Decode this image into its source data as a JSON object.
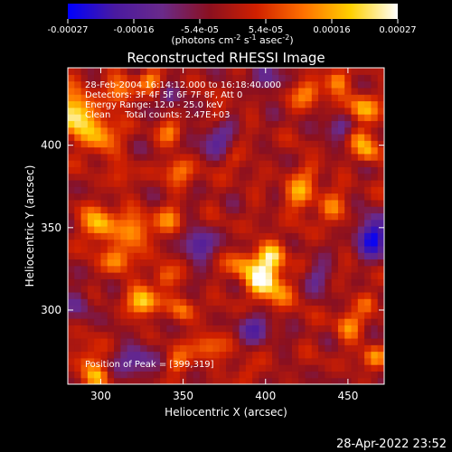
{
  "chart_data": {
    "type": "heatmap",
    "title": "Reconstructed RHESSI Image",
    "xlabel": "Heliocentric X (arcsec)",
    "ylabel": "Heliocentric Y (arcsec)",
    "xlim": [
      280,
      472
    ],
    "ylim": [
      255,
      447
    ],
    "xticks": [
      300,
      350,
      400,
      450
    ],
    "yticks": [
      300,
      350,
      400
    ],
    "colorbar": {
      "range": [
        -0.00027,
        0.00027
      ],
      "tick_labels": [
        "-0.00027",
        "-0.00016",
        "-5.4e-05",
        "5.4e-05",
        "0.00016",
        "0.00027"
      ],
      "units_label": "(photons cm",
      "units_label_sup1": "-2",
      "units_label_mid": " s",
      "units_label_sup2": "-1",
      "units_label_end": " asec",
      "units_label_sup3": "-2",
      "units_label_close": ")",
      "colormap": [
        "#0000ff",
        "#4a1aa0",
        "#6a2a8a",
        "#8a1020",
        "#d02000",
        "#ff7000",
        "#ffd000",
        "#ffffff"
      ]
    },
    "annotations": [
      "28-Feb-2004 16:14:12.000 to 16:18:40.000",
      "Detectors: 3F 4F 5F 6F 7F 8F, Att 0",
      "Energy Range: 12.0 - 25.0 keV",
      "Clean     Total counts: 2.47E+03"
    ],
    "peak_label": "Position of Peak = [399,319]",
    "peak": [
      399,
      319
    ],
    "hotspots": [
      {
        "x": 398,
        "y": 318,
        "v": 1.0,
        "r": 7
      },
      {
        "x": 404,
        "y": 333,
        "v": 0.85,
        "r": 6
      },
      {
        "x": 386,
        "y": 328,
        "v": 0.55,
        "r": 6
      },
      {
        "x": 410,
        "y": 310,
        "v": 0.5,
        "r": 6
      },
      {
        "x": 284,
        "y": 420,
        "v": 0.95,
        "r": 9
      },
      {
        "x": 300,
        "y": 405,
        "v": 0.7,
        "r": 7
      },
      {
        "x": 312,
        "y": 432,
        "v": 0.55,
        "r": 6
      },
      {
        "x": 330,
        "y": 440,
        "v": 0.5,
        "r": 5
      },
      {
        "x": 300,
        "y": 352,
        "v": 0.8,
        "r": 7
      },
      {
        "x": 322,
        "y": 348,
        "v": 0.65,
        "r": 7
      },
      {
        "x": 342,
        "y": 355,
        "v": 0.4,
        "r": 6
      },
      {
        "x": 310,
        "y": 330,
        "v": 0.6,
        "r": 6
      },
      {
        "x": 326,
        "y": 305,
        "v": 0.85,
        "r": 6
      },
      {
        "x": 338,
        "y": 320,
        "v": 0.55,
        "r": 5
      },
      {
        "x": 350,
        "y": 300,
        "v": 0.45,
        "r": 5
      },
      {
        "x": 348,
        "y": 385,
        "v": 0.5,
        "r": 6
      },
      {
        "x": 343,
        "y": 408,
        "v": 0.45,
        "r": 5
      },
      {
        "x": 372,
        "y": 418,
        "v": 0.35,
        "r": 5
      },
      {
        "x": 426,
        "y": 432,
        "v": 0.55,
        "r": 6
      },
      {
        "x": 444,
        "y": 440,
        "v": 0.6,
        "r": 5
      },
      {
        "x": 458,
        "y": 422,
        "v": 0.7,
        "r": 6
      },
      {
        "x": 462,
        "y": 396,
        "v": 0.55,
        "r": 5
      },
      {
        "x": 456,
        "y": 405,
        "v": 0.45,
        "r": 5
      },
      {
        "x": 420,
        "y": 370,
        "v": 0.55,
        "r": 7
      },
      {
        "x": 440,
        "y": 362,
        "v": 0.5,
        "r": 6
      },
      {
        "x": 428,
        "y": 385,
        "v": 0.35,
        "r": 5
      },
      {
        "x": 364,
        "y": 278,
        "v": 0.55,
        "r": 6
      },
      {
        "x": 345,
        "y": 268,
        "v": 0.45,
        "r": 5
      },
      {
        "x": 388,
        "y": 262,
        "v": 0.35,
        "r": 5
      },
      {
        "x": 450,
        "y": 290,
        "v": 0.5,
        "r": 6
      },
      {
        "x": 466,
        "y": 272,
        "v": 0.55,
        "r": 5
      },
      {
        "x": 462,
        "y": 305,
        "v": 0.4,
        "r": 5
      },
      {
        "x": 290,
        "y": 270,
        "v": 0.45,
        "r": 6
      },
      {
        "x": 298,
        "y": 260,
        "v": 0.5,
        "r": 5
      },
      {
        "x": 380,
        "y": 392,
        "v": 0.35,
        "r": 5
      },
      {
        "x": 312,
        "y": 380,
        "v": 0.3,
        "r": 5
      }
    ],
    "coldspots": [
      {
        "x": 466,
        "y": 345,
        "v": -0.9,
        "r": 8
      },
      {
        "x": 360,
        "y": 340,
        "v": -0.6,
        "r": 7
      },
      {
        "x": 370,
        "y": 405,
        "v": -0.55,
        "r": 8
      },
      {
        "x": 322,
        "y": 270,
        "v": -0.6,
        "r": 7
      },
      {
        "x": 395,
        "y": 290,
        "v": -0.5,
        "r": 7
      },
      {
        "x": 430,
        "y": 320,
        "v": -0.45,
        "r": 6
      },
      {
        "x": 444,
        "y": 410,
        "v": -0.5,
        "r": 6
      },
      {
        "x": 400,
        "y": 440,
        "v": -0.45,
        "r": 6
      },
      {
        "x": 288,
        "y": 305,
        "v": -0.4,
        "r": 6
      },
      {
        "x": 342,
        "y": 430,
        "v": -0.4,
        "r": 5
      }
    ]
  },
  "footer": {
    "timestamp": "28-Apr-2022 23:52"
  }
}
